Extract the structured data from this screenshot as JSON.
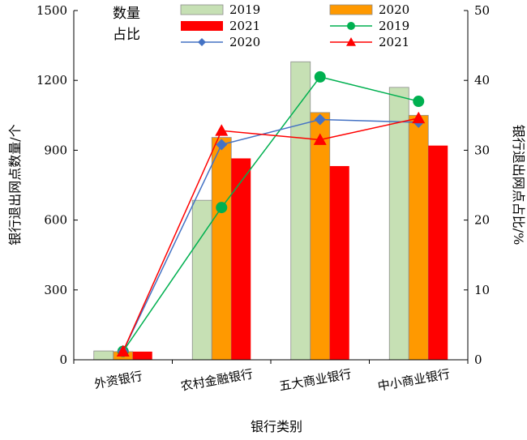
{
  "chart_data": {
    "type": "bar",
    "categories": [
      "外资银行",
      "农村金融银行",
      "五大商业银行",
      "中小商业银行"
    ],
    "xlabel": "银行类别",
    "ylabel": "银行退出网点数量/个",
    "y2label": "银行退出网点占比/%",
    "ylim": [
      0,
      1500
    ],
    "y2lim": [
      0,
      50
    ],
    "yticks": [
      0,
      300,
      600,
      900,
      1200,
      1500
    ],
    "y2ticks": [
      0,
      10,
      20,
      30,
      40,
      50
    ],
    "legend_headers": [
      "数量",
      "占比"
    ],
    "legend_placement": "top",
    "grid": false,
    "bar_series": [
      {
        "name": "2019",
        "color": "#c6e0b4",
        "values": [
          38,
          685,
          1280,
          1170
        ]
      },
      {
        "name": "2020",
        "color": "#ff9900",
        "values": [
          35,
          955,
          1062,
          1050
        ]
      },
      {
        "name": "2021",
        "color": "#ff0000",
        "values": [
          35,
          865,
          832,
          920
        ]
      }
    ],
    "line_series": [
      {
        "name": "2019",
        "color": "#00b050",
        "marker": "circle",
        "values": [
          1.2,
          21.8,
          40.5,
          37.0
        ]
      },
      {
        "name": "2020",
        "color": "#4472c4",
        "marker": "diamond",
        "values": [
          1.2,
          30.8,
          34.4,
          34.0
        ]
      },
      {
        "name": "2021",
        "color": "#ff0000",
        "marker": "triangle",
        "values": [
          1.2,
          32.8,
          31.5,
          34.6
        ]
      }
    ]
  }
}
